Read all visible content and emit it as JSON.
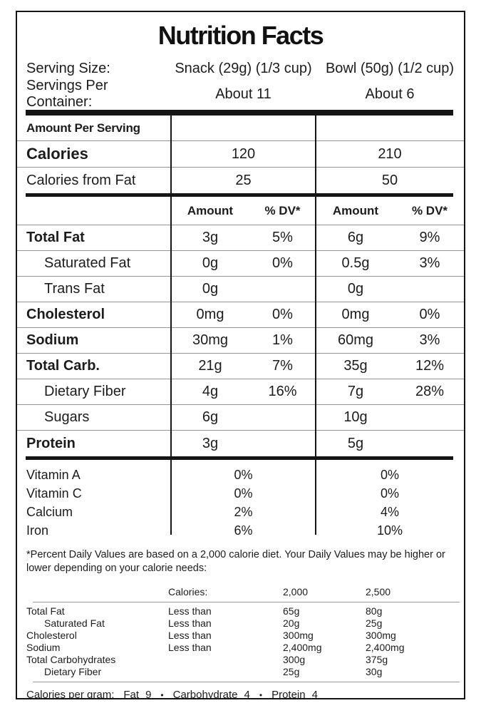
{
  "label": {
    "title": "Nutrition Facts",
    "serving": {
      "serving_size_label": "Serving Size:",
      "servings_per_container_label": "Servings Per Container:",
      "snack_serving_size": "Snack (29g) (1/3 cup)",
      "bowl_serving_size": "Bowl (50g) (1/2 cup)",
      "snack_servings": "About 11",
      "bowl_servings": "About 6"
    },
    "amount_per_serving_label": "Amount Per Serving",
    "calories_row": {
      "label": "Calories",
      "snack": "120",
      "bowl": "210"
    },
    "calories_from_fat_row": {
      "label": "Calories from Fat",
      "snack": "25",
      "bowl": "50"
    },
    "column_headers": {
      "amount": "Amount",
      "dv": "% DV*"
    },
    "nutrients": [
      {
        "label": "Total Fat",
        "snack_amount": "3g",
        "snack_dv": "5%",
        "bowl_amount": "6g",
        "bowl_dv": "9%"
      },
      {
        "label": "Saturated Fat",
        "snack_amount": "0g",
        "snack_dv": "0%",
        "bowl_amount": "0.5g",
        "bowl_dv": "3%"
      },
      {
        "label": "Trans Fat",
        "snack_amount": "0g",
        "snack_dv": "",
        "bowl_amount": "0g",
        "bowl_dv": ""
      },
      {
        "label": "Cholesterol",
        "snack_amount": "0mg",
        "snack_dv": "0%",
        "bowl_amount": "0mg",
        "bowl_dv": "0%"
      },
      {
        "label": "Sodium",
        "snack_amount": "30mg",
        "snack_dv": "1%",
        "bowl_amount": "60mg",
        "bowl_dv": "3%"
      },
      {
        "label": "Total Carb.",
        "snack_amount": "21g",
        "snack_dv": "7%",
        "bowl_amount": "35g",
        "bowl_dv": "12%"
      },
      {
        "label": "Dietary Fiber",
        "snack_amount": "4g",
        "snack_dv": "16%",
        "bowl_amount": "7g",
        "bowl_dv": "28%"
      },
      {
        "label": "Sugars",
        "snack_amount": "6g",
        "snack_dv": "",
        "bowl_amount": "10g",
        "bowl_dv": ""
      },
      {
        "label": "Protein",
        "snack_amount": "3g",
        "snack_dv": "",
        "bowl_amount": "5g",
        "bowl_dv": ""
      }
    ],
    "vitamins": [
      {
        "label": "Vitamin A",
        "snack": "0%",
        "bowl": "0%"
      },
      {
        "label": "Vitamin C",
        "snack": "0%",
        "bowl": "0%"
      },
      {
        "label": "Calcium",
        "snack": "2%",
        "bowl": "4%"
      },
      {
        "label": "Iron",
        "snack": "6%",
        "bowl": "10%"
      }
    ],
    "footnote": "*Percent Daily Values are based on a 2,000 calorie diet. Your Daily Values may be higher or lower depending on your calorie needs:",
    "dv_table": {
      "header": {
        "calories_label": "Calories:",
        "col1": "2,000",
        "col2": "2,500"
      },
      "rows": [
        {
          "label": "Total Fat",
          "qualifier": "Less than",
          "v1": "65g",
          "v2": "80g"
        },
        {
          "label": "Saturated Fat",
          "qualifier": "Less than",
          "v1": "20g",
          "v2": "25g"
        },
        {
          "label": "Cholesterol",
          "qualifier": "Less than",
          "v1": "300mg",
          "v2": "300mg"
        },
        {
          "label": "Sodium",
          "qualifier": "Less than",
          "v1": "2,400mg",
          "v2": "2,400mg"
        },
        {
          "label": "Total Carbohydrates",
          "qualifier": "",
          "v1": "300g",
          "v2": "375g"
        },
        {
          "label": "Dietary Fiber",
          "qualifier": "",
          "v1": "25g",
          "v2": "30g"
        }
      ]
    },
    "calories_per_gram": {
      "label": "Calories per gram:",
      "fat_name": "Fat",
      "fat_value": "9",
      "carb_name": "Carbohydrate",
      "carb_value": "4",
      "protein_name": "Protein",
      "protein_value": "4",
      "separator": "•"
    }
  },
  "colors": {
    "text": "#1c1c1c",
    "bar": "#151515",
    "hairline": "#949494",
    "background": "#ffffff"
  }
}
